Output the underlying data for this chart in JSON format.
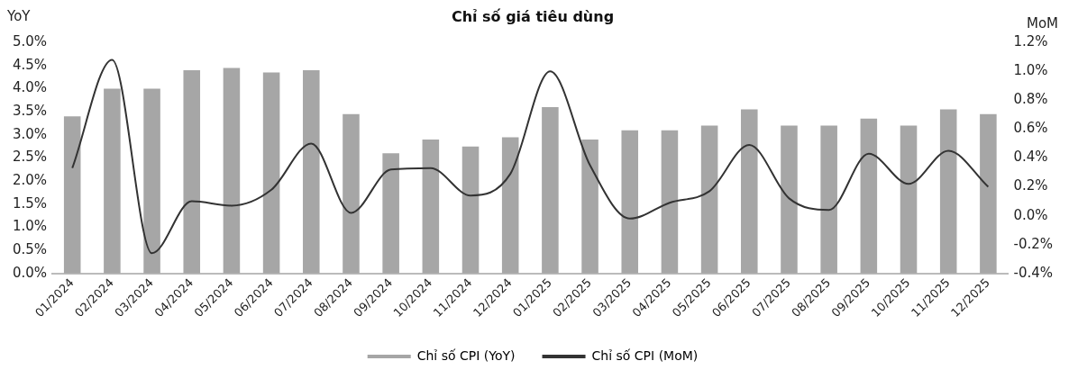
{
  "chart_data": {
    "type": "bar",
    "title": "Chỉ số giá tiêu dùng",
    "ylabel": "YoY",
    "y2label": "MoM",
    "categories": [
      "01/2024",
      "02/2024",
      "03/2024",
      "04/2024",
      "05/2024",
      "06/2024",
      "07/2024",
      "08/2024",
      "09/2024",
      "10/2024",
      "11/2024",
      "12/2024",
      "01/2025",
      "02/2025",
      "03/2025",
      "04/2025",
      "05/2025",
      "06/2025",
      "07/2025",
      "08/2025",
      "09/2025",
      "10/2025",
      "11/2025",
      "12/2025"
    ],
    "series": [
      {
        "name": "Chỉ số CPI (YoY)",
        "color": "#a6a6a6",
        "values": [
          3.4,
          4.0,
          4.0,
          4.4,
          4.45,
          4.35,
          4.4,
          3.45,
          2.6,
          2.9,
          2.75,
          2.95,
          3.6,
          2.9,
          3.1,
          3.1,
          3.2,
          3.55,
          3.2,
          3.2,
          3.35,
          3.2,
          3.55,
          3.45
        ]
      },
      {
        "name": "Chỉ số CPI (MoM)",
        "type": "line",
        "axis": "y2",
        "color": "#333333",
        "values": [
          0.33,
          1.08,
          -0.26,
          0.1,
          0.07,
          0.18,
          0.5,
          0.02,
          0.32,
          0.33,
          0.14,
          0.29,
          1.0,
          0.35,
          -0.02,
          0.09,
          0.17,
          0.49,
          0.12,
          0.04,
          0.43,
          0.22,
          0.45,
          0.2
        ]
      }
    ],
    "ylim": [
      0,
      5
    ],
    "yticks": [
      {
        "value": 0,
        "label": "0.0%"
      },
      {
        "value": 0.5,
        "label": "0.5%"
      },
      {
        "value": 1,
        "label": "1.0%"
      },
      {
        "value": 1.5,
        "label": "1.5%"
      },
      {
        "value": 2,
        "label": "2.0%"
      },
      {
        "value": 2.5,
        "label": "2.5%"
      },
      {
        "value": 3,
        "label": "3.0%"
      },
      {
        "value": 3.5,
        "label": "3.5%"
      },
      {
        "value": 4,
        "label": "4.0%"
      },
      {
        "value": 4.5,
        "label": "4.5%"
      },
      {
        "value": 5,
        "label": "5.0%"
      }
    ],
    "y2lim": [
      -0.4,
      1.2
    ],
    "y2ticks": [
      {
        "value": -0.4,
        "label": "-0.4%"
      },
      {
        "value": -0.2,
        "label": "-0.2%"
      },
      {
        "value": 0,
        "label": "0.0%"
      },
      {
        "value": 0.2,
        "label": "0.2%"
      },
      {
        "value": 0.4,
        "label": "0.4%"
      },
      {
        "value": 0.6,
        "label": "0.6%"
      },
      {
        "value": 0.8,
        "label": "0.8%"
      },
      {
        "value": 1,
        "label": "1.0%"
      },
      {
        "value": 1.2,
        "label": "1.2%"
      }
    ],
    "grid": false,
    "legend": "bottom",
    "marker": "none",
    "line_style": "solid"
  }
}
